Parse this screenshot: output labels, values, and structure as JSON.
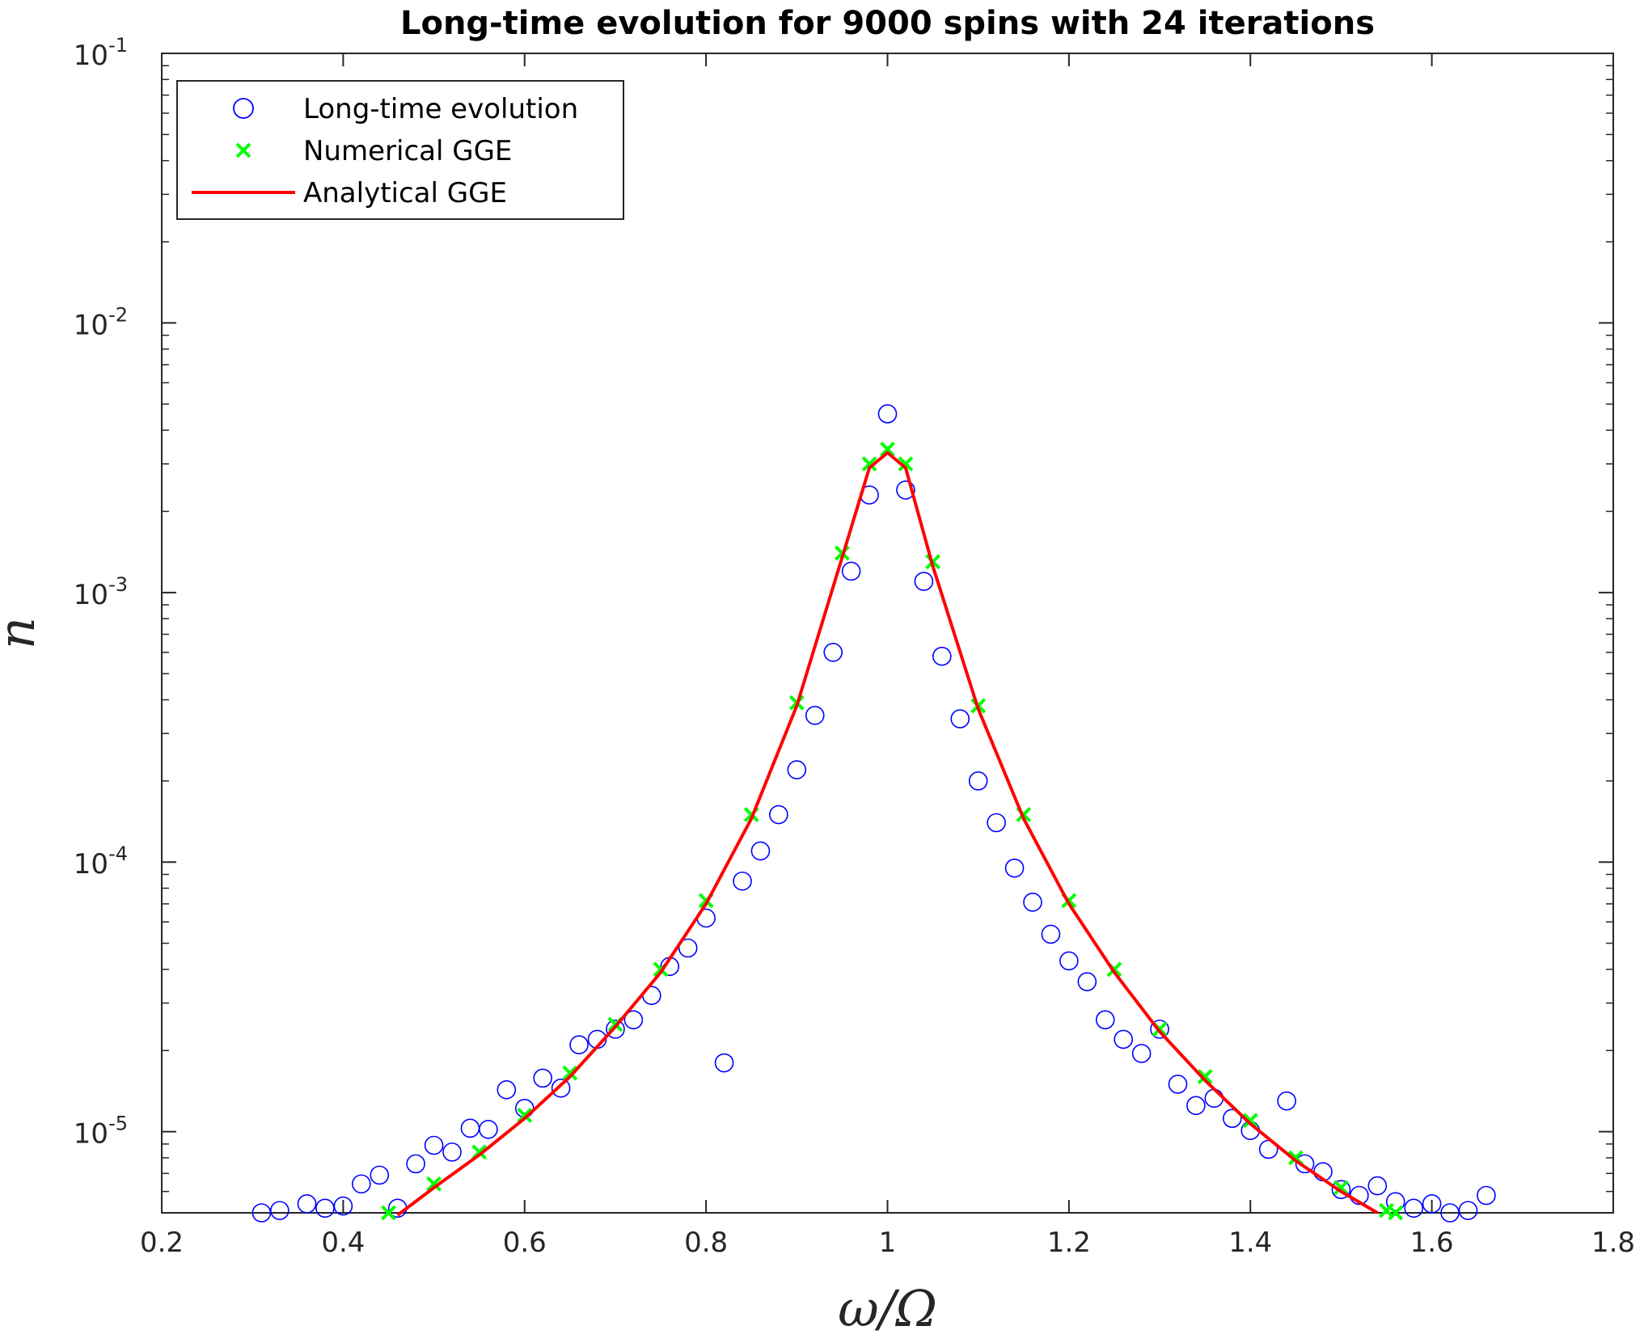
{
  "chart_data": {
    "type": "scatter",
    "title": "Long-time evolution for 9000 spins with 24 iterations",
    "xlabel": "ω/Ω",
    "ylabel": "n",
    "xlim": [
      0.2,
      1.8
    ],
    "ylim": [
      5e-06,
      0.1
    ],
    "yscale": "log",
    "xticks": [
      "0.2",
      "0.4",
      "0.6",
      "0.8",
      "1",
      "1.2",
      "1.4",
      "1.6",
      "1.8"
    ],
    "yticks": [
      {
        "base": "10",
        "exp": "-1",
        "value": 0.1
      },
      {
        "base": "10",
        "exp": "-2",
        "value": 0.01
      },
      {
        "base": "10",
        "exp": "-3",
        "value": 0.001
      },
      {
        "base": "10",
        "exp": "-4",
        "value": 0.0001
      },
      {
        "base": "10",
        "exp": "-5",
        "value": 1e-05
      }
    ],
    "grid": false,
    "legend_position": "top-left",
    "series": [
      {
        "name": "Long-time evolution",
        "marker": "circle-open",
        "color": "#0000ff",
        "x": [
          0.31,
          0.33,
          0.36,
          0.38,
          0.4,
          0.42,
          0.44,
          0.46,
          0.48,
          0.5,
          0.52,
          0.54,
          0.56,
          0.58,
          0.6,
          0.62,
          0.64,
          0.66,
          0.68,
          0.7,
          0.72,
          0.74,
          0.76,
          0.78,
          0.8,
          0.82,
          0.84,
          0.86,
          0.88,
          0.9,
          0.92,
          0.94,
          0.96,
          0.98,
          1.0,
          1.02,
          1.04,
          1.06,
          1.08,
          1.1,
          1.12,
          1.14,
          1.16,
          1.18,
          1.2,
          1.22,
          1.24,
          1.26,
          1.28,
          1.3,
          1.32,
          1.34,
          1.36,
          1.38,
          1.4,
          1.42,
          1.44,
          1.46,
          1.48,
          1.5,
          1.52,
          1.54,
          1.56,
          1.58,
          1.6,
          1.62,
          1.64,
          1.66
        ],
        "y": [
          5e-06,
          5.1e-06,
          5.4e-06,
          5.2e-06,
          5.3e-06,
          6.4e-06,
          6.9e-06,
          5.2e-06,
          7.6e-06,
          8.9e-06,
          8.4e-06,
          1.03e-05,
          1.02e-05,
          1.43e-05,
          1.22e-05,
          1.58e-05,
          1.45e-05,
          2.1e-05,
          2.2e-05,
          2.4e-05,
          2.6e-05,
          3.2e-05,
          4.1e-05,
          4.8e-05,
          6.2e-05,
          1.8e-05,
          8.5e-05,
          0.00011,
          0.00015,
          0.00022,
          0.00035,
          0.0006,
          0.0012,
          0.0023,
          0.0046,
          0.0024,
          0.0011,
          0.00058,
          0.00034,
          0.0002,
          0.00014,
          9.5e-05,
          7.1e-05,
          5.4e-05,
          4.3e-05,
          3.6e-05,
          2.6e-05,
          2.2e-05,
          1.95e-05,
          2.4e-05,
          1.5e-05,
          1.25e-05,
          1.33e-05,
          1.12e-05,
          1.01e-05,
          8.6e-06,
          1.3e-05,
          7.6e-06,
          7.1e-06,
          6.1e-06,
          5.8e-06,
          6.3e-06,
          5.5e-06,
          5.2e-06,
          5.4e-06,
          5e-06,
          5.1e-06,
          5.8e-06
        ]
      },
      {
        "name": "Numerical GGE",
        "marker": "x",
        "color": "#00ff00",
        "x": [
          0.45,
          0.5,
          0.55,
          0.6,
          0.65,
          0.7,
          0.75,
          0.8,
          0.85,
          0.9,
          0.95,
          0.98,
          1.0,
          1.02,
          1.05,
          1.1,
          1.15,
          1.2,
          1.25,
          1.3,
          1.35,
          1.4,
          1.45,
          1.5,
          1.55,
          1.56
        ],
        "y": [
          5e-06,
          6.4e-06,
          8.4e-06,
          1.15e-05,
          1.65e-05,
          2.5e-05,
          4e-05,
          7.2e-05,
          0.00015,
          0.00039,
          0.0014,
          0.003,
          0.0034,
          0.003,
          0.0013,
          0.00038,
          0.00015,
          7.2e-05,
          4e-05,
          2.4e-05,
          1.6e-05,
          1.1e-05,
          8e-06,
          6.2e-06,
          5.1e-06,
          5e-06
        ]
      },
      {
        "name": "Analytical GGE",
        "marker": "line",
        "color": "#ff0000",
        "x": [
          0.46,
          0.5,
          0.55,
          0.6,
          0.65,
          0.7,
          0.75,
          0.8,
          0.85,
          0.9,
          0.95,
          0.98,
          1.0,
          1.02,
          1.05,
          1.1,
          1.15,
          1.2,
          1.25,
          1.3,
          1.35,
          1.4,
          1.45,
          1.5,
          1.54
        ],
        "y": [
          4.9e-06,
          6.2e-06,
          8.2e-06,
          1.12e-05,
          1.6e-05,
          2.45e-05,
          3.9e-05,
          7e-05,
          0.000145,
          0.00038,
          0.00135,
          0.0029,
          0.0033,
          0.0029,
          0.00125,
          0.00037,
          0.000145,
          7e-05,
          3.9e-05,
          2.35e-05,
          1.55e-05,
          1.07e-05,
          7.8e-06,
          6e-06,
          5e-06
        ]
      }
    ]
  }
}
